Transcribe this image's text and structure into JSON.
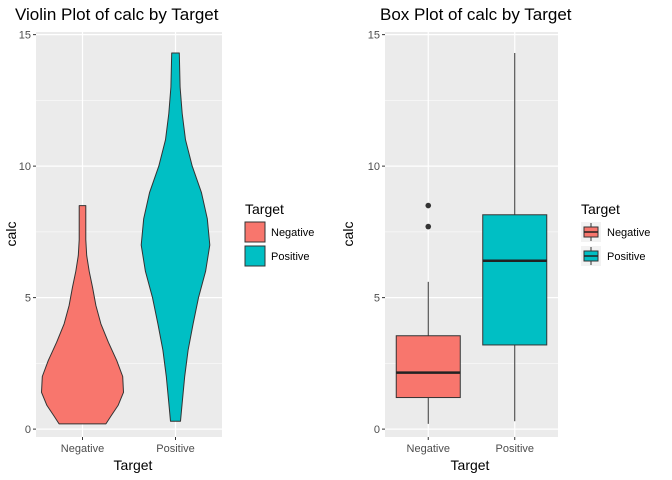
{
  "chart_data": [
    {
      "type": "violin",
      "title": "Violin Plot of calc by Target",
      "xlabel": "Target",
      "ylabel": "calc",
      "categories": [
        "Negative",
        "Positive"
      ],
      "ylim": [
        -0.3,
        15.1
      ],
      "y_ticks": [
        "0",
        "5",
        "10",
        "15"
      ],
      "grid": true,
      "legend": {
        "title": "Target",
        "entries": [
          "Negative",
          "Positive"
        ],
        "position": "right"
      },
      "colors": {
        "Negative": "#F8766D",
        "Positive": "#00BFC4"
      },
      "series": [
        {
          "category": "Negative",
          "min": 0.2,
          "max": 8.5,
          "profile": [
            [
              0.2,
              0.56
            ],
            [
              0.5,
              0.68
            ],
            [
              0.9,
              0.85
            ],
            [
              1.4,
              0.98
            ],
            [
              2.0,
              0.96
            ],
            [
              2.6,
              0.82
            ],
            [
              3.3,
              0.62
            ],
            [
              4.0,
              0.44
            ],
            [
              4.7,
              0.32
            ],
            [
              5.4,
              0.24
            ],
            [
              6.0,
              0.16
            ],
            [
              6.6,
              0.1
            ],
            [
              7.2,
              0.08
            ],
            [
              7.8,
              0.08
            ],
            [
              8.5,
              0.08
            ]
          ]
        },
        {
          "category": "Positive",
          "min": 0.3,
          "max": 14.3,
          "profile": [
            [
              0.3,
              0.12
            ],
            [
              1.0,
              0.16
            ],
            [
              2.0,
              0.22
            ],
            [
              3.0,
              0.3
            ],
            [
              4.0,
              0.42
            ],
            [
              5.0,
              0.55
            ],
            [
              6.0,
              0.72
            ],
            [
              7.0,
              0.82
            ],
            [
              8.0,
              0.76
            ],
            [
              9.0,
              0.62
            ],
            [
              10.0,
              0.4
            ],
            [
              11.0,
              0.24
            ],
            [
              12.0,
              0.16
            ],
            [
              13.0,
              0.11
            ],
            [
              14.3,
              0.09
            ]
          ]
        }
      ]
    },
    {
      "type": "box",
      "title": "Box Plot of calc by Target",
      "xlabel": "Target",
      "ylabel": "calc",
      "categories": [
        "Negative",
        "Positive"
      ],
      "ylim": [
        -0.3,
        15.1
      ],
      "y_ticks": [
        "0",
        "5",
        "10",
        "15"
      ],
      "grid": true,
      "legend": {
        "title": "Target",
        "entries": [
          "Negative",
          "Positive"
        ],
        "position": "right"
      },
      "colors": {
        "Negative": "#F8766D",
        "Positive": "#00BFC4"
      },
      "series": [
        {
          "category": "Negative",
          "whisker_low": 0.2,
          "q1": 1.2,
          "median": 2.15,
          "q3": 3.55,
          "whisker_high": 5.6,
          "outliers": [
            7.7,
            8.5
          ]
        },
        {
          "category": "Positive",
          "whisker_low": 0.3,
          "q1": 3.2,
          "median": 6.4,
          "q3": 8.15,
          "whisker_high": 14.3,
          "outliers": []
        }
      ]
    }
  ]
}
